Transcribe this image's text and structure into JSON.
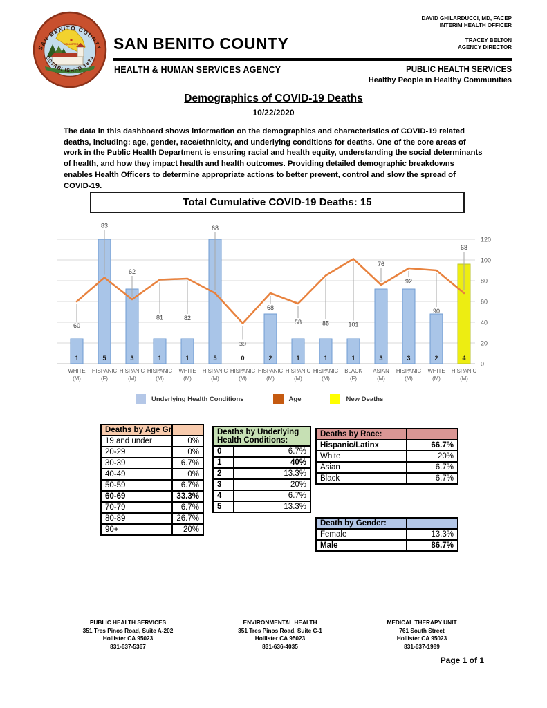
{
  "header": {
    "county": "SAN BENITO COUNTY",
    "agency": "HEALTH & HUMAN SERVICES AGENCY",
    "official1_name": "DAVID GHILARDUCCI, MD, FACEP",
    "official1_title": "INTERIM HEALTH OFFICER",
    "official2_name": "TRACEY BELTON",
    "official2_title": "AGENCY DIRECTOR",
    "department": "PUBLIC HEALTH SERVICES",
    "tagline": "Healthy People in Healthy Communities",
    "seal_top": "SAN BENITO COUNTY",
    "seal_bottom": "ESTABLISHED 1874",
    "seal_city": "HOLLISTER"
  },
  "title": "Demographics of COVID-19 Deaths",
  "date": "10/22/2020",
  "intro": "The data in this dashboard shows information on the demographics and characteristics of COVID-19 related deaths, including: age, gender, race/ethnicity, and underlying conditions for deaths. One of the core areas of work in the Public Health Department is ensuring racial and health equity, understanding the social determinants of health, and how they impact health and health outcomes. Providing detailed demographic breakdowns enables Health Officers to determine appropriate actions to better prevent, control and slow the spread of COVID-19.",
  "total_banner": "Total Cumulative COVID-19 Deaths: 15",
  "chart_data": {
    "type": "bar+line combo",
    "categories": [
      "WHITE (M)",
      "HISPANIC (F)",
      "HISPANIC (M)",
      "HISPANIC (M)",
      "WHITE (M)",
      "HISPANIC (M)",
      "HISPANIC (M)",
      "HISPANIC (M)",
      "HISPANIC (M)",
      "HISPANIC (M)",
      "BLACK (F)",
      "ASIAN (M)",
      "HISPANIC (M)",
      "WHITE (M)",
      "HISPANIC (M)"
    ],
    "series": [
      {
        "name": "Underlying Health Conditions",
        "type": "bar",
        "values": [
          1,
          5,
          3,
          1,
          1,
          5,
          0,
          2,
          1,
          1,
          1,
          3,
          3,
          2,
          4
        ]
      },
      {
        "name": "Age",
        "type": "line",
        "values": [
          60,
          83,
          62,
          81,
          82,
          68,
          39,
          68,
          58,
          85,
          101,
          76,
          92,
          90,
          68
        ]
      },
      {
        "name": "New Deaths",
        "type": "bar-highlight",
        "applies_to_index": 14
      }
    ],
    "axis": {
      "right_ticks": [
        0,
        20,
        40,
        60,
        80,
        100,
        120
      ],
      "ylim": [
        0,
        120
      ],
      "bar_units_per_condition": 24,
      "grid": true,
      "legend_position": "bottom"
    },
    "label_dy": [
      38,
      -72,
      -37,
      58,
      60,
      -91,
      33,
      24,
      30,
      72,
      98,
      -27,
      22,
      62,
      -63
    ],
    "colors": {
      "bar": "#A9C5E8",
      "bar_border": "#6F9BD2",
      "line": "#E8823E",
      "new_death": "#EDED12",
      "new_death_border": "#B9C22B"
    }
  },
  "legend": [
    {
      "label": "Underlying Health Conditions",
      "color": "#B4C7E7"
    },
    {
      "label": "Age",
      "color": "#C55A11"
    },
    {
      "label": "New Deaths",
      "color": "#FFFF00"
    }
  ],
  "tables": {
    "age": {
      "title": "Deaths by Age Group:",
      "header_color": "#F8CBAD",
      "rows": [
        [
          "19 and under",
          "0%"
        ],
        [
          "20-29",
          "0%"
        ],
        [
          "30-39",
          "6.7%"
        ],
        [
          "40-49",
          "0%"
        ],
        [
          "50-59",
          "6.7%"
        ],
        [
          "60-69",
          "33.3%"
        ],
        [
          "70-79",
          "6.7%"
        ],
        [
          "80-89",
          "26.7%"
        ],
        [
          "90+",
          "20%"
        ]
      ]
    },
    "conditions": {
      "title": "Deaths by Underlying Health Conditions:",
      "header_color": "#C6E0B4",
      "rows": [
        [
          "0",
          "6.7%"
        ],
        [
          "1",
          "40%"
        ],
        [
          "2",
          "13.3%"
        ],
        [
          "3",
          "20%"
        ],
        [
          "4",
          "6.7%"
        ],
        [
          "5",
          "13.3%"
        ]
      ]
    },
    "race": {
      "title": "Deaths by Race:",
      "header_color": "#DA9694",
      "rows": [
        [
          "Hispanic/Latinx",
          "66.7%"
        ],
        [
          "White",
          "20%"
        ],
        [
          "Asian",
          "6.7%"
        ],
        [
          "Black",
          "6.7%"
        ]
      ]
    },
    "gender": {
      "title": "Death by Gender:",
      "header_color": "#B4C7E7",
      "rows": [
        [
          "Female",
          "13.3%"
        ],
        [
          "Male",
          "86.7%"
        ]
      ]
    }
  },
  "footer": {
    "columns": [
      {
        "title": "PUBLIC HEALTH SERVICES",
        "lines": [
          "351 Tres Pinos Road, Suite A-202",
          "Hollister CA 95023",
          "831-637-5367"
        ]
      },
      {
        "title": "ENVIRONMENTAL HEALTH",
        "lines": [
          "351 Tres Pinos Road, Suite C-1",
          "Hollister CA 95023",
          "831-636-4035"
        ]
      },
      {
        "title": "MEDICAL THERAPY UNIT",
        "lines": [
          "761 South Street",
          "Hollister CA 95023",
          "831-637-1989"
        ]
      }
    ],
    "page": "Page 1 of 1"
  }
}
